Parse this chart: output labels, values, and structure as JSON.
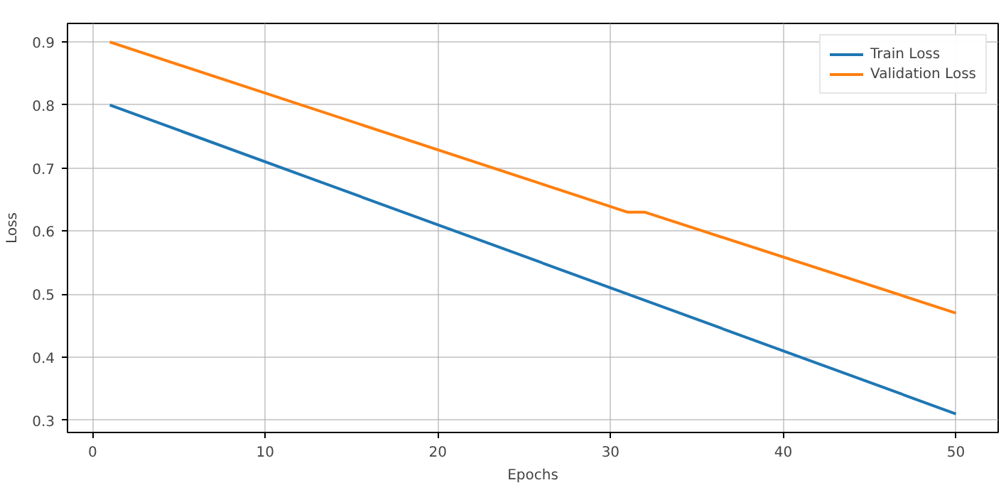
{
  "chart_data": {
    "type": "line",
    "xlabel": "Epochs",
    "ylabel": "Loss",
    "series": [
      {
        "name": "Train Loss",
        "color": "#1f77b4",
        "x": [
          1,
          50
        ],
        "values": [
          0.8,
          0.31
        ]
      },
      {
        "name": "Validation Loss",
        "color": "#ff7f0e",
        "x": [
          1,
          31,
          32,
          50
        ],
        "values": [
          0.9,
          0.63,
          0.63,
          0.47
        ]
      }
    ],
    "xlim": [
      -1.45,
      52.45
    ],
    "ylim": [
      0.2805,
      0.9295
    ],
    "xticks": [
      0,
      10,
      20,
      30,
      40,
      50
    ],
    "yticks": [
      0.3,
      0.4,
      0.5,
      0.6,
      0.7,
      0.8,
      0.9
    ],
    "grid": true,
    "legend": "top right",
    "line_style": "solid"
  }
}
